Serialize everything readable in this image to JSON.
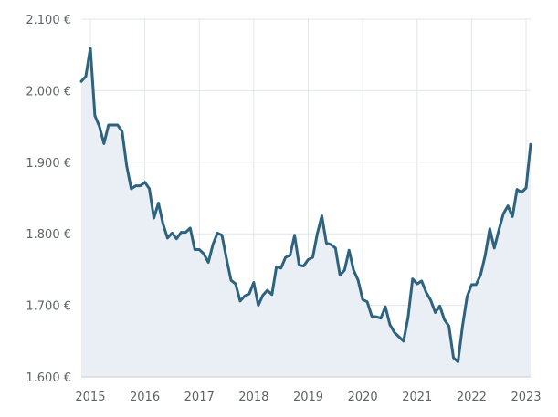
{
  "chart_data": {
    "type": "area",
    "title": "",
    "xlabel": "",
    "ylabel": "",
    "grid": true,
    "legend": "none",
    "colors": {
      "line": "#2e6380",
      "fill": "#e9eff4",
      "grid": "#e3e6ea",
      "text": "#5f6368"
    },
    "x_ticks": [
      "2015",
      "2016",
      "2017",
      "2018",
      "2019",
      "2020",
      "2021",
      "2022",
      "2023"
    ],
    "y_ticks": [
      "1.600 €",
      "1.700 €",
      "1.800 €",
      "1.900 €",
      "2.000 €",
      "2.100 €"
    ],
    "xlim": [
      "2014-11",
      "2023-02"
    ],
    "ylim": [
      1600,
      2100
    ],
    "series": [
      {
        "x": [
          "2014-11",
          "2014-12",
          "2015-01",
          "2015-02",
          "2015-03",
          "2015-04",
          "2015-05",
          "2015-06",
          "2015-07",
          "2015-08",
          "2015-09",
          "2015-10",
          "2015-11",
          "2015-12",
          "2016-01",
          "2016-02",
          "2016-03",
          "2016-04",
          "2016-05",
          "2016-06",
          "2016-07",
          "2016-08",
          "2016-09",
          "2016-10",
          "2016-11",
          "2016-12",
          "2017-01",
          "2017-02",
          "2017-03",
          "2017-04",
          "2017-05",
          "2017-06",
          "2017-07",
          "2017-08",
          "2017-09",
          "2017-10",
          "2017-11",
          "2017-12",
          "2018-01",
          "2018-02",
          "2018-03",
          "2018-04",
          "2018-05",
          "2018-06",
          "2018-07",
          "2018-08",
          "2018-09",
          "2018-10",
          "2018-11",
          "2018-12",
          "2019-01",
          "2019-02",
          "2019-03",
          "2019-04",
          "2019-05",
          "2019-06",
          "2019-07",
          "2019-08",
          "2019-09",
          "2019-10",
          "2019-11",
          "2019-12",
          "2020-01",
          "2020-02",
          "2020-03",
          "2020-04",
          "2020-05",
          "2020-06",
          "2020-07",
          "2020-08",
          "2020-09",
          "2020-10",
          "2020-11",
          "2020-12",
          "2021-01",
          "2021-02",
          "2021-03",
          "2021-04",
          "2021-05",
          "2021-06",
          "2021-07",
          "2021-08",
          "2021-09",
          "2021-10",
          "2021-11",
          "2021-12",
          "2022-01",
          "2022-02",
          "2022-03",
          "2022-04",
          "2022-05",
          "2022-06",
          "2022-07",
          "2022-08",
          "2022-09",
          "2022-10",
          "2022-11",
          "2022-12",
          "2023-01",
          "2023-02"
        ],
        "values": [
          2013,
          2020,
          2060,
          1965,
          1950,
          1926,
          1952,
          1952,
          1952,
          1943,
          1895,
          1863,
          1867,
          1867,
          1872,
          1863,
          1822,
          1843,
          1814,
          1794,
          1801,
          1793,
          1802,
          1802,
          1808,
          1778,
          1778,
          1772,
          1760,
          1785,
          1801,
          1798,
          1765,
          1735,
          1730,
          1706,
          1713,
          1716,
          1732,
          1700,
          1714,
          1721,
          1715,
          1754,
          1752,
          1767,
          1770,
          1798,
          1756,
          1755,
          1764,
          1767,
          1800,
          1825,
          1787,
          1785,
          1780,
          1742,
          1749,
          1777,
          1749,
          1735,
          1708,
          1705,
          1685,
          1684,
          1682,
          1698,
          1673,
          1662,
          1656,
          1650,
          1683,
          1737,
          1730,
          1734,
          1718,
          1707,
          1690,
          1699,
          1680,
          1671,
          1627,
          1621,
          1671,
          1712,
          1729,
          1729,
          1743,
          1770,
          1807,
          1780,
          1805,
          1828,
          1839,
          1824,
          1862,
          1858,
          1864,
          1925
        ]
      }
    ]
  }
}
